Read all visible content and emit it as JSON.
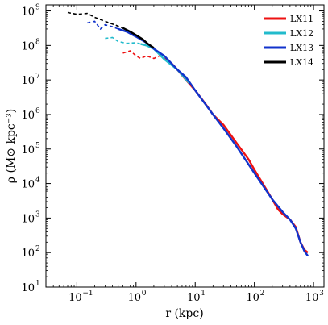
{
  "chart_data": {
    "type": "line",
    "xlabel": "r (kpc)",
    "ylabel": "ρ (M⊙ kpc⁻³)",
    "xscale": "log",
    "yscale": "log",
    "xlim": [
      0.03,
      1500
    ],
    "ylim": [
      10,
      1500000000
    ],
    "x_ticks": [
      {
        "value": 0.1,
        "base": "10",
        "exp": "−1"
      },
      {
        "value": 1,
        "base": "10",
        "exp": "0"
      },
      {
        "value": 10,
        "base": "10",
        "exp": "1"
      },
      {
        "value": 100,
        "base": "10",
        "exp": "2"
      },
      {
        "value": 1000,
        "base": "10",
        "exp": "3"
      }
    ],
    "y_ticks": [
      {
        "value": 10,
        "base": "10",
        "exp": "1"
      },
      {
        "value": 100,
        "base": "10",
        "exp": "2"
      },
      {
        "value": 1000,
        "base": "10",
        "exp": "3"
      },
      {
        "value": 10000,
        "base": "10",
        "exp": "4"
      },
      {
        "value": 100000,
        "base": "10",
        "exp": "5"
      },
      {
        "value": 1000000,
        "base": "10",
        "exp": "6"
      },
      {
        "value": 10000000,
        "base": "10",
        "exp": "7"
      },
      {
        "value": 100000000,
        "base": "10",
        "exp": "8"
      },
      {
        "value": 1000000000,
        "base": "10",
        "exp": "9"
      }
    ],
    "legend_position": "top-right",
    "series": [
      {
        "name": "LX11",
        "color": "#ee1111",
        "dashed": {
          "x": [
            0.6,
            0.8,
            1.0,
            1.2,
            1.5,
            2.0,
            2.5,
            3.0
          ],
          "y": [
            60000000,
            70000000,
            50000000,
            42000000,
            50000000,
            42000000,
            50000000,
            42000000
          ]
        },
        "solid": {
          "x": [
            3.0,
            4.0,
            5.0,
            7.0,
            10,
            15,
            20,
            30,
            50,
            80,
            100,
            150,
            200,
            250,
            300,
            400,
            500,
            600,
            700,
            800
          ],
          "y": [
            42000000,
            30000000,
            20000000,
            10000000,
            5000000,
            2000000,
            1000000,
            500000,
            150000,
            50000,
            25000,
            8000,
            3500,
            1800,
            1300,
            900,
            550,
            200,
            120,
            100
          ]
        }
      },
      {
        "name": "LX12",
        "color": "#22bbcc",
        "dashed": {
          "x": [
            0.3,
            0.4,
            0.5,
            0.7,
            1.0,
            1.2
          ],
          "y": [
            160000000,
            170000000,
            130000000,
            115000000,
            120000000,
            110000000
          ]
        },
        "solid": {
          "x": [
            1.2,
            1.5,
            2.0,
            3.0,
            5.0,
            8.0
          ],
          "y": [
            110000000,
            100000000,
            80000000,
            40000000,
            20000000,
            8000000
          ]
        }
      },
      {
        "name": "LX13",
        "color": "#1133cc",
        "dashed": {
          "x": [
            0.15,
            0.2,
            0.25,
            0.3,
            0.4,
            0.5
          ],
          "y": [
            450000000,
            500000000,
            300000000,
            400000000,
            350000000,
            300000000
          ]
        },
        "solid": {
          "x": [
            0.5,
            0.7,
            1.0,
            1.5,
            2.0,
            3.0,
            5.0,
            7.0,
            10,
            20,
            30,
            50,
            100,
            200,
            300,
            400,
            500,
            600,
            700,
            800
          ],
          "y": [
            300000000,
            250000000,
            180000000,
            120000000,
            80000000,
            50000000,
            20000000,
            12000000,
            5000000,
            1000000,
            400000,
            120000,
            20000,
            3500,
            1500,
            900,
            500,
            200,
            110,
            80
          ]
        }
      },
      {
        "name": "LX14",
        "color": "#000000",
        "dashed": {
          "x": [
            0.07,
            0.1,
            0.15,
            0.2,
            0.3,
            0.4,
            0.6
          ],
          "y": [
            900000000,
            800000000,
            850000000,
            650000000,
            500000000,
            420000000,
            320000000
          ]
        },
        "solid": {
          "x": [
            0.6,
            0.8,
            1.0,
            1.3,
            1.6,
            2.0
          ],
          "y": [
            320000000,
            250000000,
            200000000,
            150000000,
            110000000,
            85000000
          ]
        }
      }
    ]
  }
}
